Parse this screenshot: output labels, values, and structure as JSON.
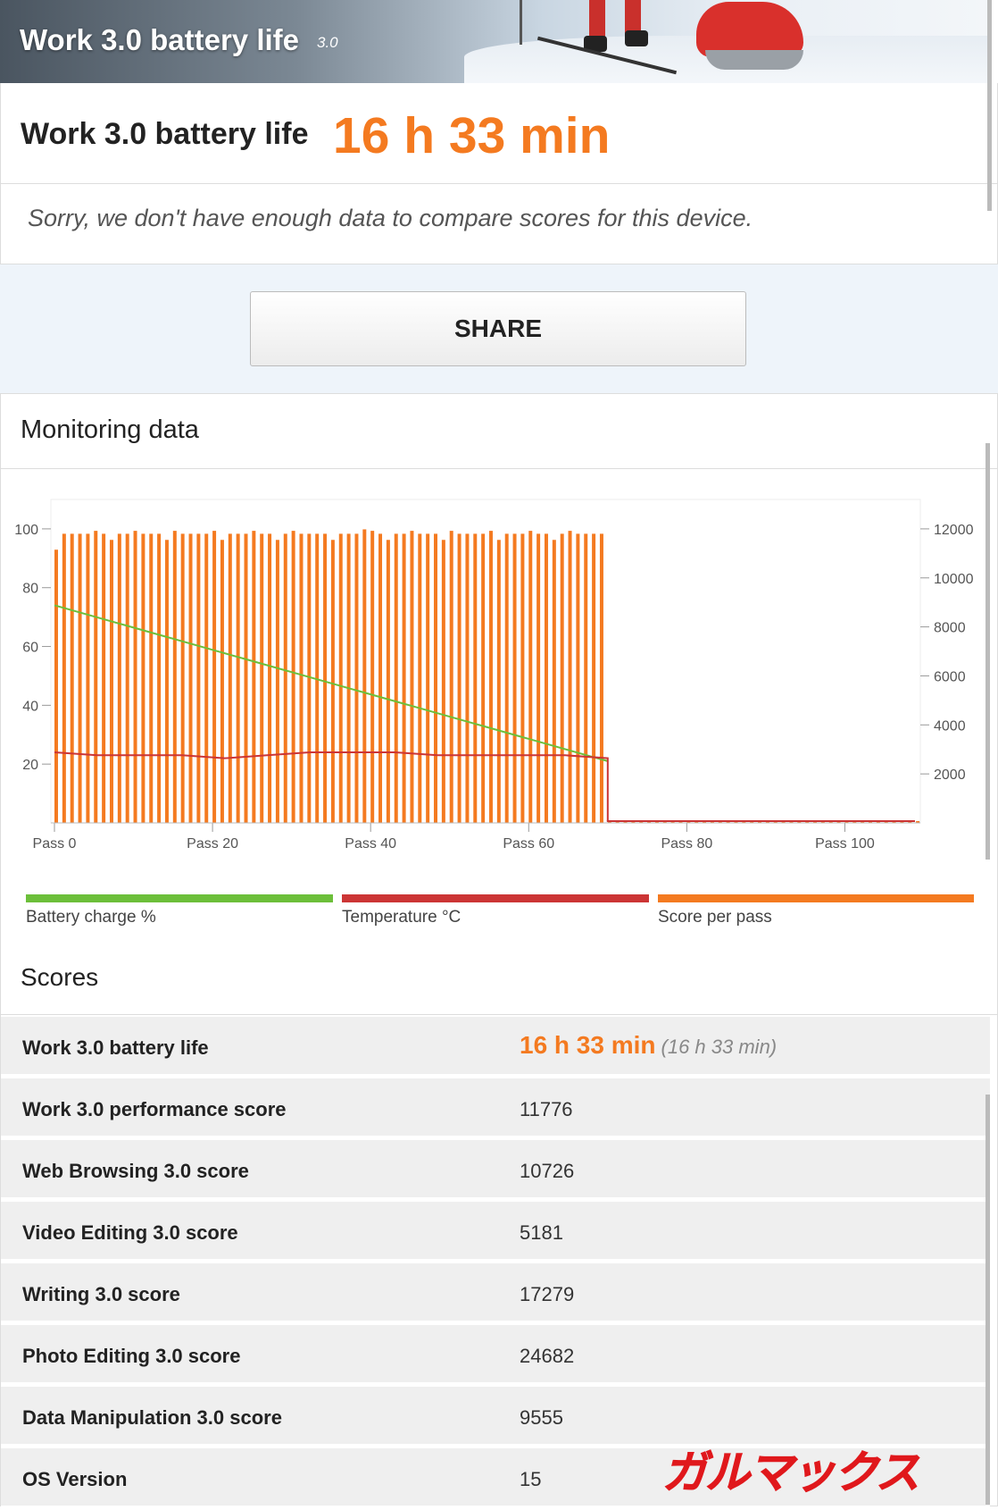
{
  "hero": {
    "title": "Work 3.0 battery life",
    "version": "3.0"
  },
  "score_card": {
    "label": "Work 3.0 battery life",
    "value": "16 h 33 min",
    "note": "Sorry, we don't have enough data to compare scores for this device."
  },
  "share": {
    "label": "SHARE"
  },
  "monitoring": {
    "title": "Monitoring data"
  },
  "colors": {
    "accent": "#f47a20",
    "battery": "#6cbf3a",
    "temperature": "#cc3535",
    "score": "#f47a20"
  },
  "chart_data": {
    "type": "bar",
    "y_left": {
      "ticks": [
        "100",
        "80",
        "60",
        "40",
        "20"
      ],
      "range": [
        0,
        110
      ]
    },
    "y_right": {
      "ticks": [
        "12000",
        "10000",
        "8000",
        "6000",
        "4000",
        "2000"
      ],
      "range": [
        0,
        13200
      ]
    },
    "x_ticks": [
      "Pass 0",
      "Pass 20",
      "Pass 40",
      "Pass 60",
      "Pass 80",
      "Pass 100"
    ],
    "passes": 110,
    "score_per_pass": {
      "name": "Score per pass",
      "value_approx": 11800,
      "ends_at_pass": 70
    },
    "battery_charge": {
      "name": "Battery charge %",
      "start": 74,
      "end": 21,
      "end_pass": 70
    },
    "temperature": {
      "name": "Temperature °C",
      "values_approx": [
        24,
        23,
        23,
        23,
        22,
        23,
        24,
        24,
        24,
        23,
        23,
        23,
        23,
        22
      ],
      "end_pass": 70
    },
    "legend": [
      {
        "name": "Battery charge %",
        "color": "#6cbf3a"
      },
      {
        "name": "Temperature °C",
        "color": "#cc3535"
      },
      {
        "name": "Score per pass",
        "color": "#f47a20"
      }
    ],
    "legend_position": "bottom"
  },
  "scores": {
    "title": "Scores",
    "battery": {
      "label": "Work 3.0 battery life",
      "value": "16 h 33 min",
      "paren": "(16 h 33 min)"
    },
    "rows": [
      {
        "label": "Work 3.0 performance score",
        "value": "11776"
      },
      {
        "label": "Web Browsing 3.0 score",
        "value": "10726"
      },
      {
        "label": "Video Editing 3.0 score",
        "value": "5181"
      },
      {
        "label": "Writing 3.0 score",
        "value": "17279"
      },
      {
        "label": "Photo Editing 3.0 score",
        "value": "24682"
      },
      {
        "label": "Data Manipulation 3.0 score",
        "value": "9555"
      },
      {
        "label": "OS Version",
        "value": "15"
      }
    ]
  },
  "watermark": {
    "text": "ガルマックス"
  }
}
